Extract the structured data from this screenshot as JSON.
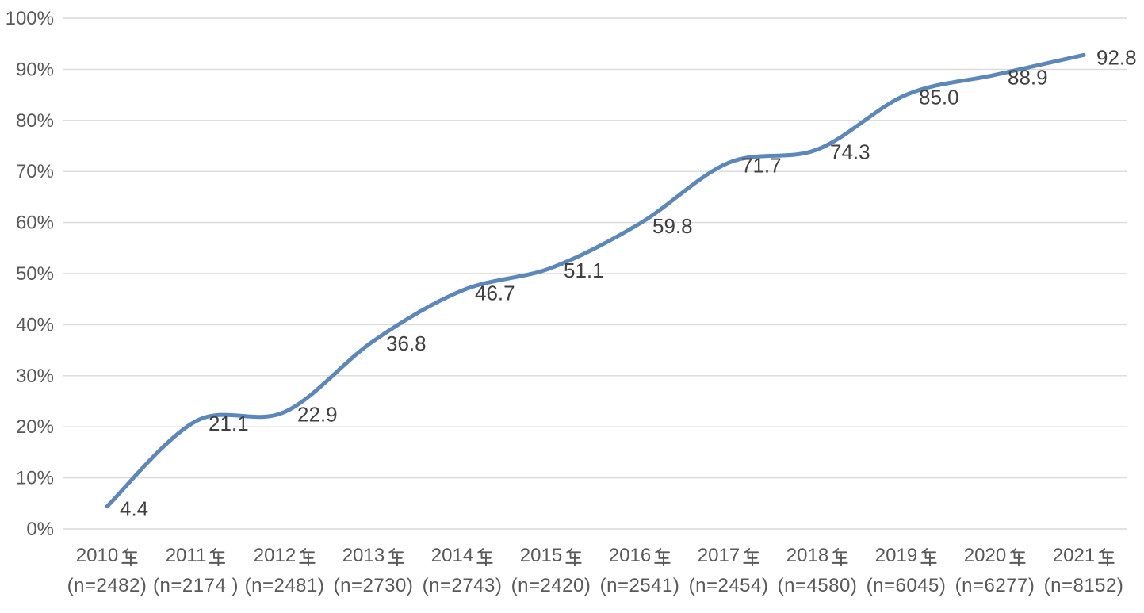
{
  "chart_data": {
    "type": "line",
    "title": "",
    "xlabel": "",
    "ylabel": "",
    "ylim": [
      0,
      100
    ],
    "grid": true,
    "legend": "none",
    "smoothed_line": true,
    "y_ticks": [
      "0%",
      "10%",
      "20%",
      "30%",
      "40%",
      "50%",
      "60%",
      "70%",
      "80%",
      "90%",
      "100%"
    ],
    "categories": [
      {
        "year": "2010年",
        "n": "(n=2482)"
      },
      {
        "year": "2011年",
        "n": "(n=2174）"
      },
      {
        "year": "2012年",
        "n": "(n=2481)"
      },
      {
        "year": "2013年",
        "n": "(n=2730)"
      },
      {
        "year": "2014年",
        "n": "(n=2743)"
      },
      {
        "year": "2015年",
        "n": "(n=2420)"
      },
      {
        "year": "2016年",
        "n": "(n=2541)"
      },
      {
        "year": "2017年",
        "n": "(n=2454)"
      },
      {
        "year": "2018年",
        "n": "(n=4580)"
      },
      {
        "year": "2019年",
        "n": "(n=6045)"
      },
      {
        "year": "2020年",
        "n": "(n=6277)"
      },
      {
        "year": "2021年",
        "n": "(n=8152)"
      }
    ],
    "values": [
      4.4,
      21.1,
      22.9,
      36.8,
      46.7,
      51.1,
      59.8,
      71.7,
      74.3,
      85.0,
      88.9,
      92.8
    ],
    "value_labels": [
      "4.4",
      "21.1",
      "22.9",
      "36.8",
      "46.7",
      "51.1",
      "59.8",
      "71.7",
      "74.3",
      "85.0",
      "88.9",
      "92.8"
    ],
    "colors": {
      "line": "#5b87b9",
      "gridline": "#d9d9d9",
      "axis_text": "#595959",
      "data_label_text": "#404040"
    }
  }
}
